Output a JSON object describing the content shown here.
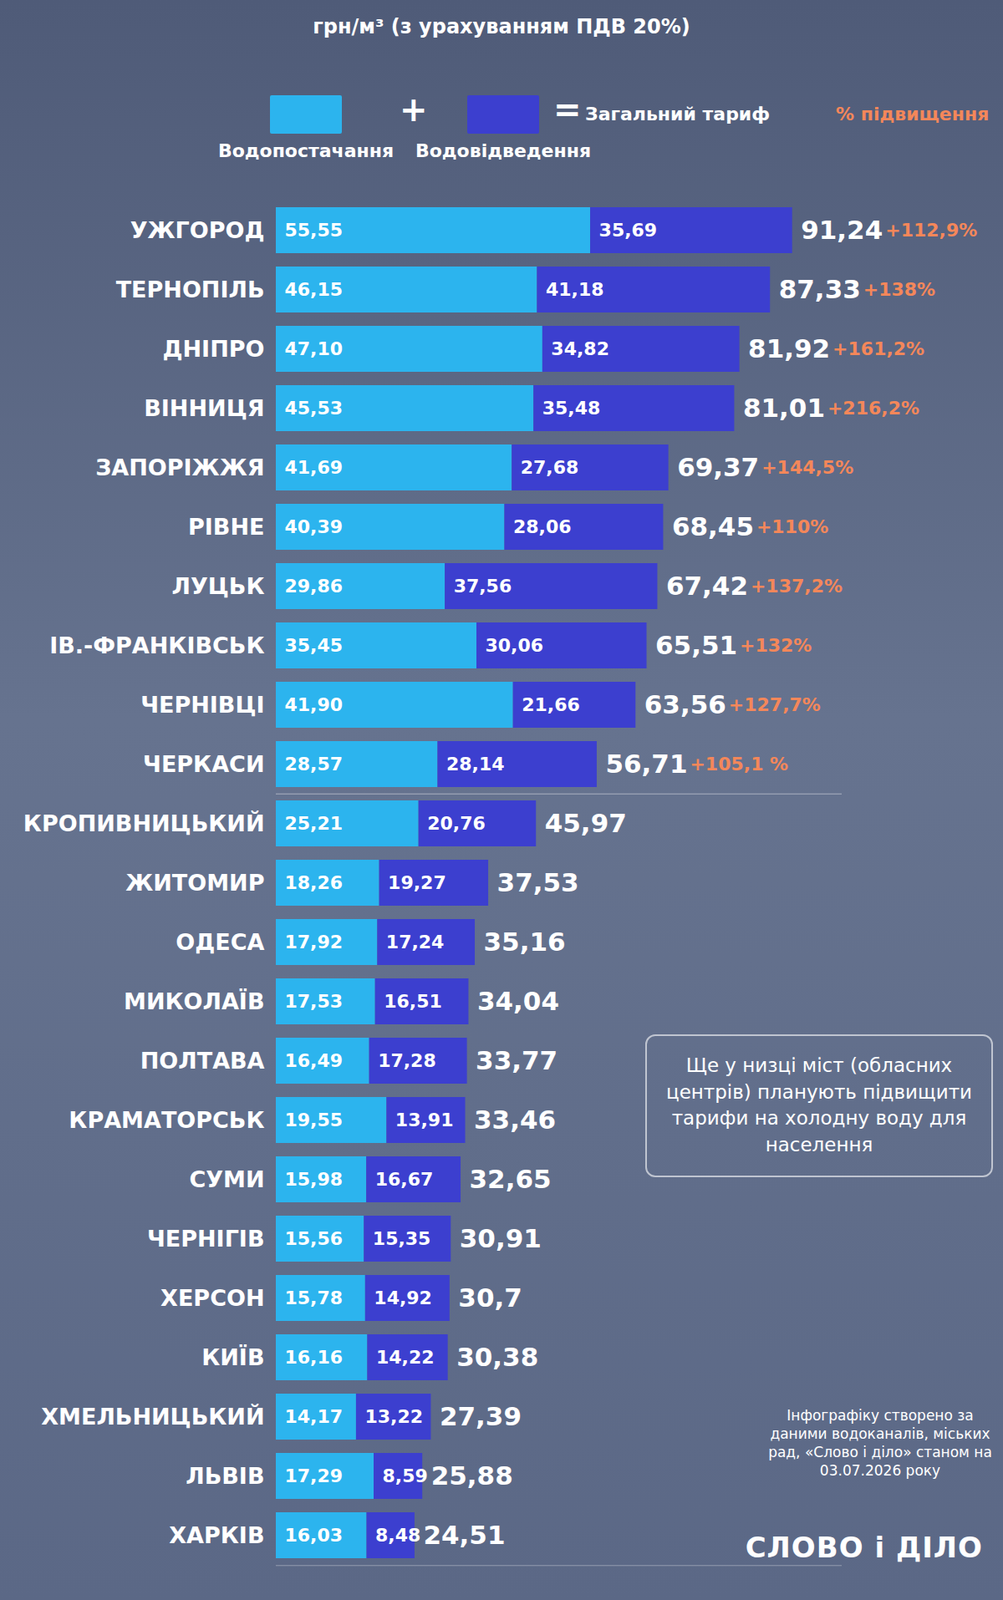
{
  "chart_data": {
    "type": "bar",
    "orientation": "horizontal",
    "stacked": true,
    "data_labels": true,
    "tick_labels": "y",
    "grid": false,
    "legend": "top",
    "subtitle": "грн/м³ (з урахуванням ПДВ 20%)",
    "legend_symbols": [
      "+",
      "="
    ],
    "xlim": [
      0,
      100
    ],
    "categories": [
      "УЖГОРОД",
      "ТЕРНОПІЛЬ",
      "ДНІПРО",
      "ВІННИЦЯ",
      "ЗАПОРІЖЖЯ",
      "РІВНЕ",
      "ЛУЦЬК",
      "ІВ.-ФРАНКІВСЬК",
      "ЧЕРНІВЦІ",
      "ЧЕРКАСИ",
      "КРОПИВНИЦЬКИЙ",
      "ЖИТОМИР",
      "ОДЕСА",
      "МИКОЛАЇВ",
      "ПОЛТАВА",
      "КРАМАТОРСЬК",
      "СУМИ",
      "ЧЕРНІГІВ",
      "ХЕРСОН",
      "КИЇВ",
      "ХМЕЛЬНИЦЬКИЙ",
      "ЛЬВІВ",
      "ХАРКІВ"
    ],
    "series": [
      {
        "name": "Водопостачання",
        "color": "#2cb4ee",
        "values": [
          55.55,
          46.15,
          47.1,
          45.53,
          41.69,
          40.39,
          29.86,
          35.45,
          41.9,
          28.57,
          25.21,
          18.26,
          17.92,
          17.53,
          16.49,
          19.55,
          15.98,
          15.56,
          15.78,
          16.16,
          14.17,
          17.29,
          16.03
        ],
        "value_labels": [
          "55,55",
          "46,15",
          "47,10",
          "45,53",
          "41,69",
          "40,39",
          "29,86",
          "35,45",
          "41,90",
          "28,57",
          "25,21",
          "18,26",
          "17,92",
          "17,53",
          "16,49",
          "19,55",
          "15,98",
          "15,56",
          "15,78",
          "16,16",
          "14,17",
          "17,29",
          "16,03"
        ]
      },
      {
        "name": "Водовідведення",
        "color": "#3c3fcf",
        "values": [
          35.69,
          41.18,
          34.82,
          35.48,
          27.68,
          28.06,
          37.56,
          30.06,
          21.66,
          28.14,
          20.76,
          19.27,
          17.24,
          16.51,
          17.28,
          13.91,
          16.67,
          15.35,
          14.92,
          14.22,
          13.22,
          8.59,
          8.48
        ],
        "value_labels": [
          "35,69",
          "41,18",
          "34,82",
          "35,48",
          "27,68",
          "28,06",
          "37,56",
          "30,06",
          "21,66",
          "28,14",
          "20,76",
          "19,27",
          "17,24",
          "16,51",
          "17,28",
          "13,91",
          "16,67",
          "15,35",
          "14,92",
          "14,22",
          "13,22",
          "8,59",
          "8,48"
        ]
      }
    ],
    "totals": {
      "name": "Загальний тариф",
      "values": [
        91.24,
        87.33,
        81.92,
        81.01,
        69.37,
        68.45,
        67.42,
        65.51,
        63.56,
        56.71,
        45.97,
        37.53,
        35.16,
        34.04,
        33.77,
        33.46,
        32.65,
        30.91,
        30.7,
        30.38,
        27.39,
        25.88,
        24.51
      ],
      "value_labels": [
        "91,24",
        "87,33",
        "81,92",
        "81,01",
        "69,37",
        "68,45",
        "67,42",
        "65,51",
        "63,56",
        "56,71",
        "45,97",
        "37,53",
        "35,16",
        "34,04",
        "33,77",
        "33,46",
        "32,65",
        "30,91",
        "30,7",
        "30,38",
        "27,39",
        "25,88",
        "24,51"
      ]
    },
    "increase": {
      "name": "% підвищення",
      "color": "#f4875a",
      "values": [
        112.9,
        138,
        161.2,
        216.2,
        144.5,
        110,
        137.2,
        132,
        127.7,
        105.1,
        null,
        null,
        null,
        null,
        null,
        null,
        null,
        null,
        null,
        null,
        null,
        null,
        null
      ],
      "value_labels": [
        "+112,9%",
        "+138%",
        "+161,2%",
        "+216,2%",
        "+144,5%",
        "+110%",
        "+137,2%",
        "+132%",
        "+127,7%",
        "+105,1 %",
        null,
        null,
        null,
        null,
        null,
        null,
        null,
        null,
        null,
        null,
        null,
        null,
        null
      ]
    },
    "note": "Ще у низці міст (обласних центрів) планують підвищити тарифи на холодну воду для населення",
    "source": "Інфографіку створено за даними водоканалів, міських рад, «Слово і діло» станом на 03.07.2026 року",
    "logo": "СЛОВО і ДІЛО"
  }
}
